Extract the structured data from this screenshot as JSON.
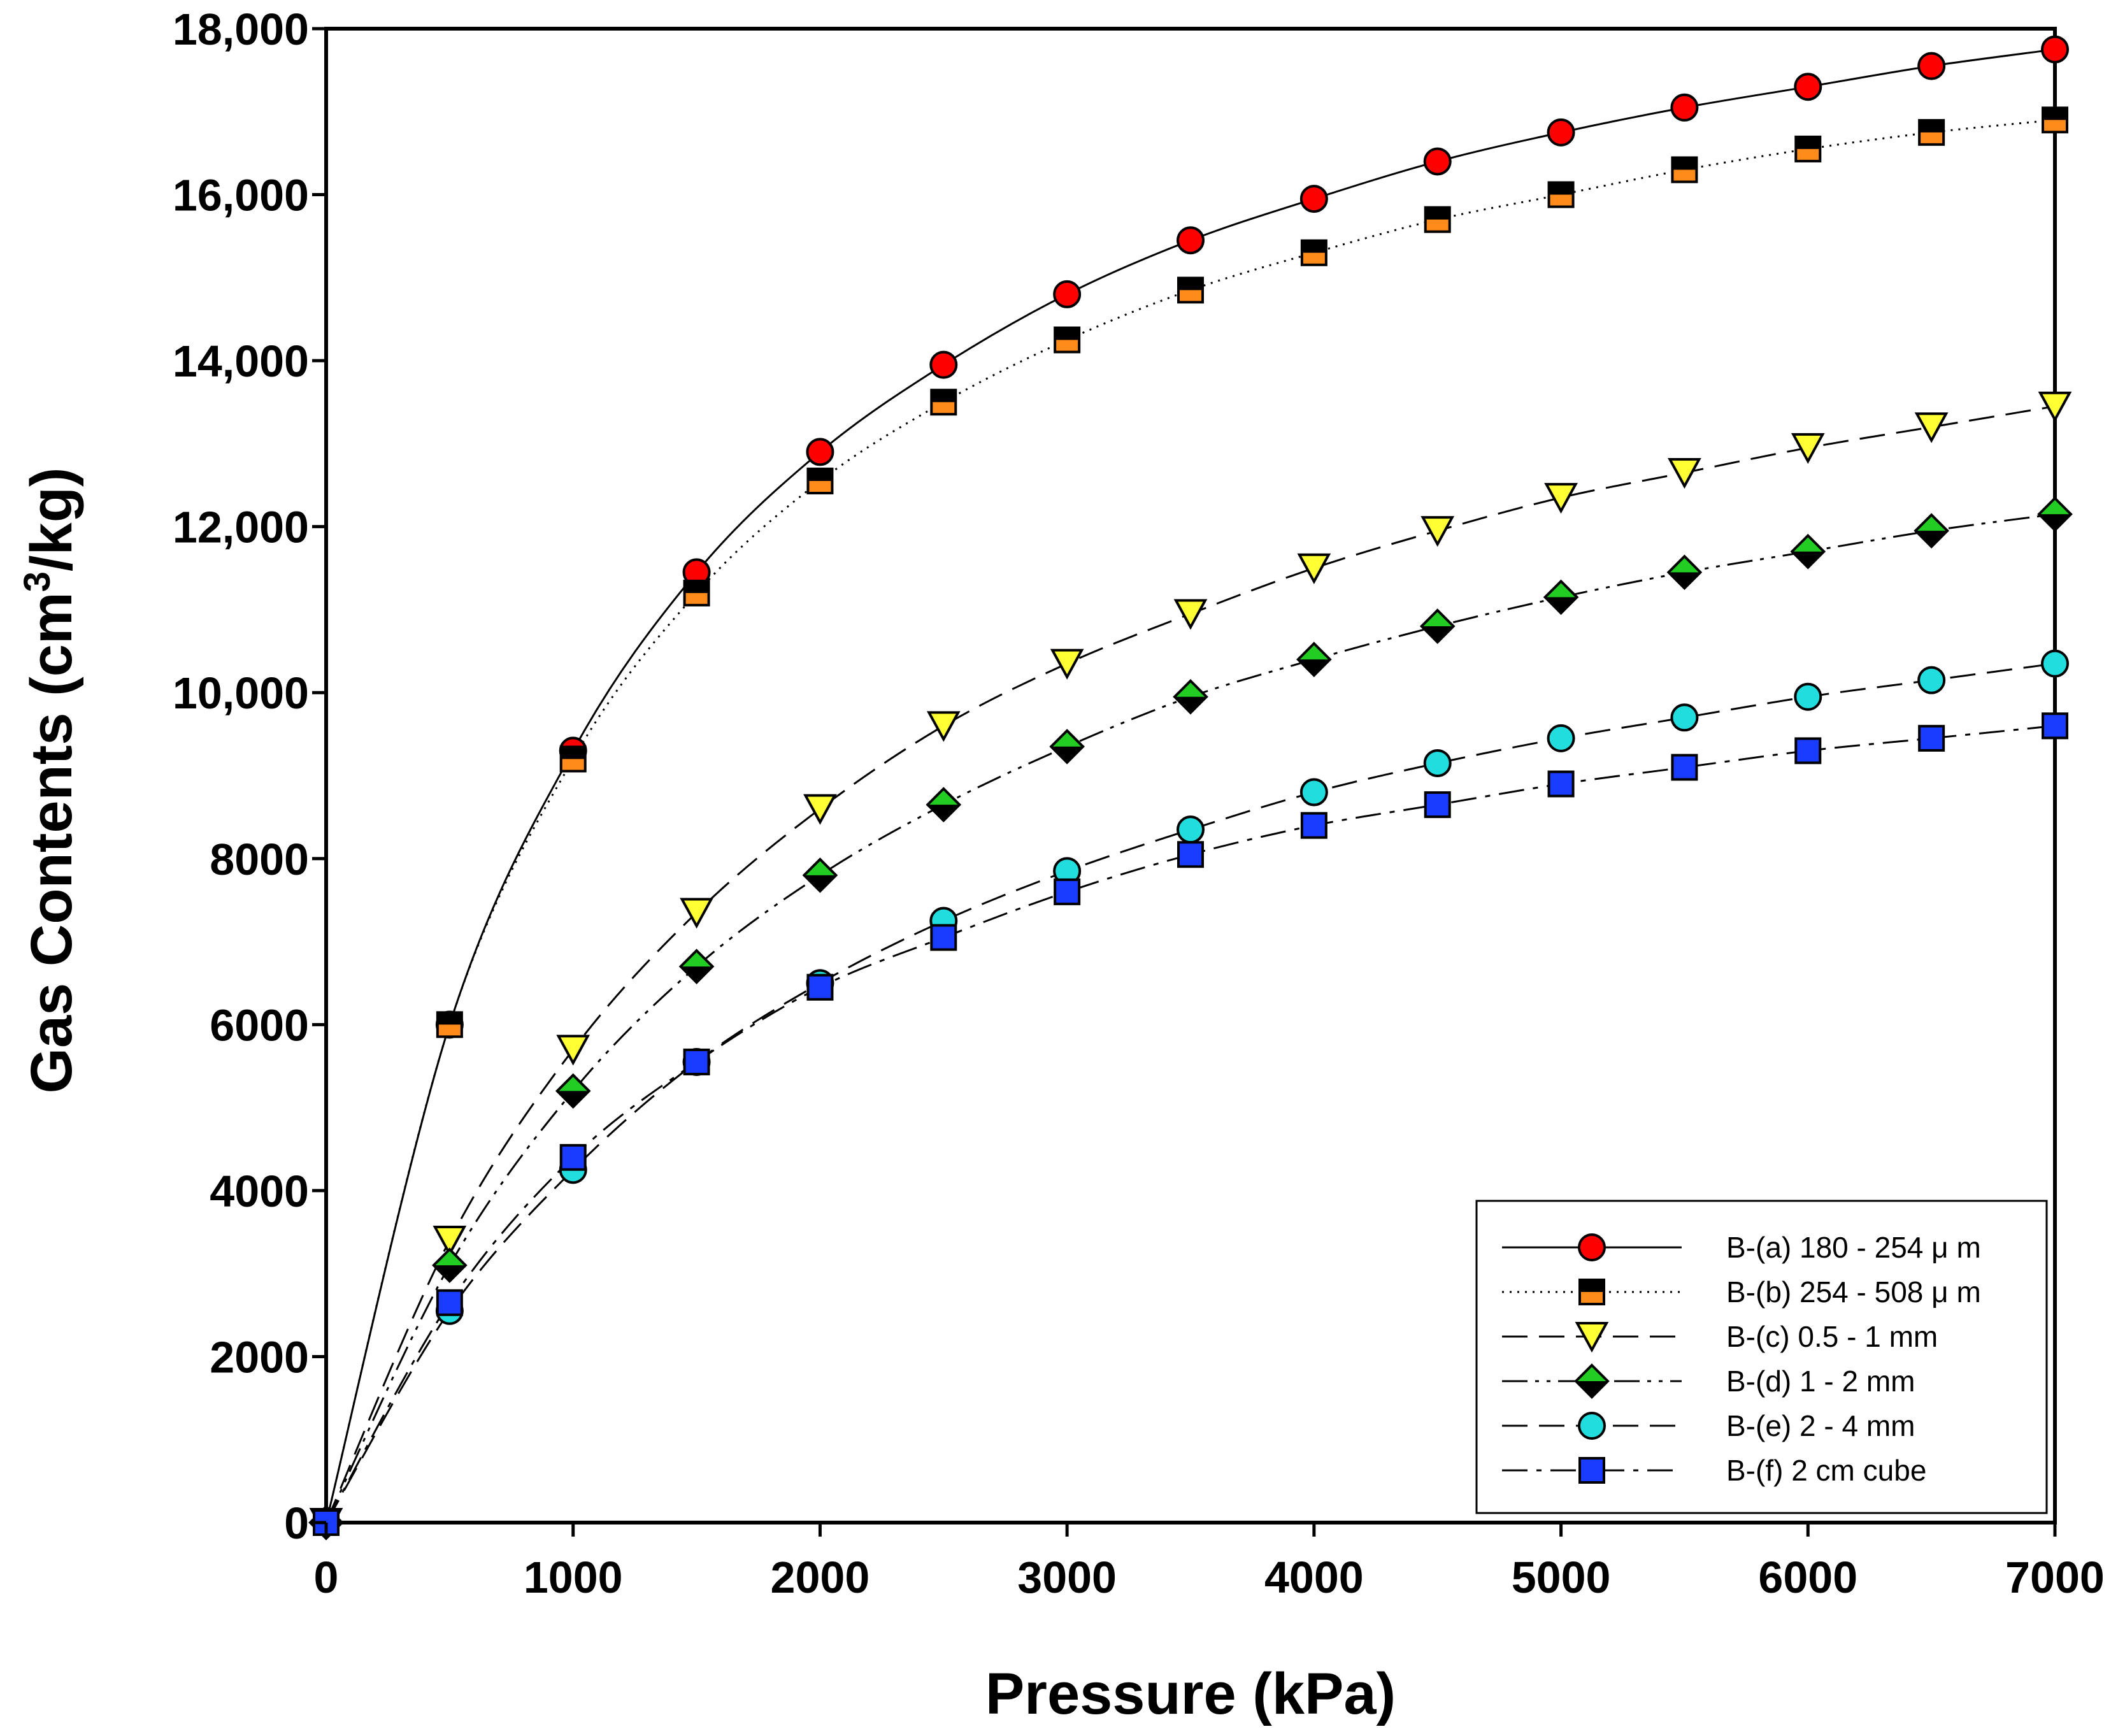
{
  "chart_data": {
    "type": "line",
    "title": "",
    "xlabel": "Pressure (kPa)",
    "ylabel_main": "Gas Contents (cm",
    "ylabel_sup": "3",
    "ylabel_tail": "/kg)",
    "xlim": [
      0,
      7000
    ],
    "ylim": [
      0,
      18000
    ],
    "x_ticks": [
      0,
      1000,
      2000,
      3000,
      4000,
      5000,
      6000,
      7000
    ],
    "x_tick_labels": [
      "0",
      "1000",
      "2000",
      "3000",
      "4000",
      "5000",
      "6000",
      "7000"
    ],
    "y_ticks": [
      0,
      2000,
      4000,
      6000,
      8000,
      10000,
      12000,
      14000,
      16000,
      18000
    ],
    "y_tick_labels": [
      "0",
      "2000",
      "4000",
      "6000",
      "8000",
      "10,000",
      "12,000",
      "14,000",
      "16,000",
      "18,000"
    ],
    "grid": false,
    "legend_position": "bottom-right",
    "x": [
      0,
      500,
      1000,
      1500,
      2000,
      2500,
      3000,
      3500,
      4000,
      4500,
      5000,
      5500,
      6000,
      6500,
      7000
    ],
    "series": [
      {
        "name": "B-(a) 180 - 254 μ m",
        "marker": "circle",
        "line_style": "solid",
        "fill": "#ff0000",
        "values": [
          0,
          6000,
          9300,
          11450,
          12900,
          13950,
          14800,
          15450,
          15950,
          16400,
          16750,
          17050,
          17300,
          17550,
          17750
        ]
      },
      {
        "name": "B-(b) 254 - 508 μ m",
        "marker": "square-split",
        "line_style": "dotted",
        "fill": "#ff8c1a",
        "values": [
          0,
          6000,
          9200,
          11200,
          12550,
          13500,
          14250,
          14850,
          15300,
          15700,
          16000,
          16300,
          16550,
          16750,
          16900
        ]
      },
      {
        "name": "B-(c) 0.5 - 1 mm",
        "marker": "triangle-down",
        "line_style": "long-dash",
        "fill": "#ffff33",
        "values": [
          0,
          3400,
          5700,
          7350,
          8600,
          9600,
          10350,
          10950,
          11500,
          11950,
          12350,
          12650,
          12950,
          13200,
          13450
        ]
      },
      {
        "name": "B-(d) 1 - 2 mm",
        "marker": "diamond-split",
        "line_style": "dash-dot-dot",
        "fill": "#22cc22",
        "values": [
          0,
          3100,
          5200,
          6700,
          7800,
          8650,
          9350,
          9950,
          10400,
          10800,
          11150,
          11450,
          11700,
          11950,
          12150
        ]
      },
      {
        "name": "B-(e) 2 - 4 mm",
        "marker": "circle",
        "line_style": "long-dash",
        "fill": "#22dddd",
        "values": [
          0,
          2550,
          4250,
          5550,
          6500,
          7250,
          7850,
          8350,
          8800,
          9150,
          9450,
          9700,
          9950,
          10150,
          10350
        ]
      },
      {
        "name": "B-(f) 2 cm cube",
        "marker": "square",
        "line_style": "dash-dot",
        "fill": "#1a3cff",
        "values": [
          0,
          2650,
          4400,
          5550,
          6450,
          7050,
          7600,
          8050,
          8400,
          8650,
          8900,
          9100,
          9300,
          9450,
          9600
        ]
      }
    ]
  }
}
